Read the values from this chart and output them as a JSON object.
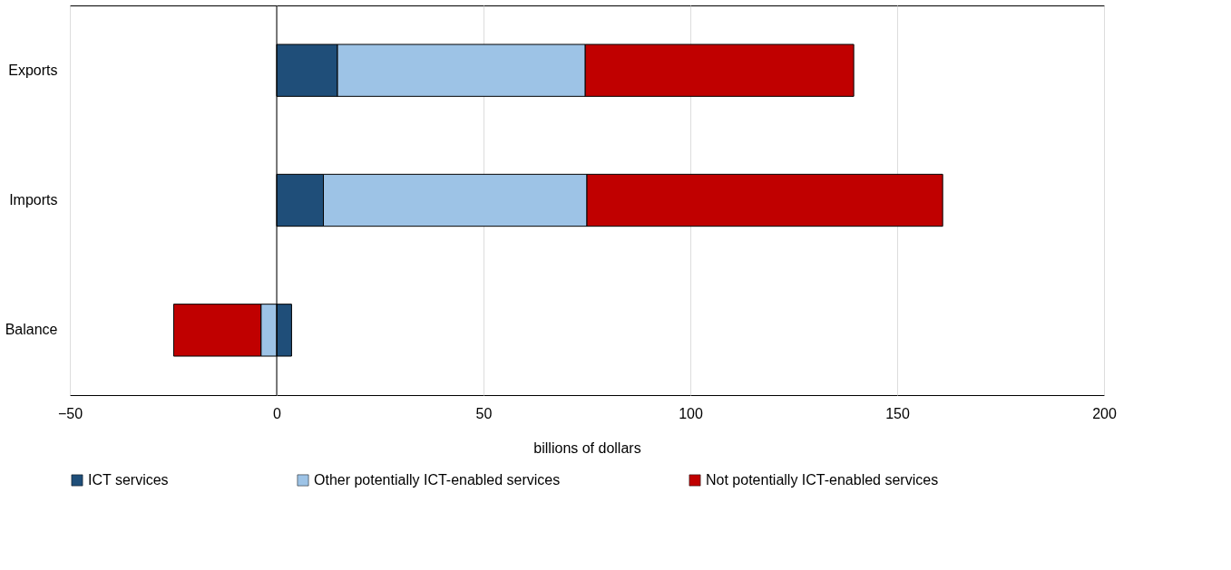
{
  "chart_data": {
    "type": "bar",
    "orientation": "horizontal",
    "stacked": true,
    "xlabel": "billions of dollars",
    "categories": [
      "Exports",
      "Imports",
      "Balance"
    ],
    "series": [
      {
        "name": "ICT services",
        "color": "#1f4e79",
        "values": [
          14.7,
          11.3,
          3.6
        ]
      },
      {
        "name": "Other potentially ICT-enabled services",
        "color": "#9dc3e6",
        "values": [
          59.9,
          63.7,
          -3.8
        ]
      },
      {
        "name": "Not potentially ICT-enabled services",
        "color": "#c00000",
        "values": [
          64.9,
          86.0,
          -21.1
        ]
      }
    ],
    "xlim": [
      -50,
      200
    ],
    "xticks": [
      -50,
      0,
      50,
      100,
      150,
      200
    ],
    "grid": "x",
    "legend": "bottom"
  }
}
